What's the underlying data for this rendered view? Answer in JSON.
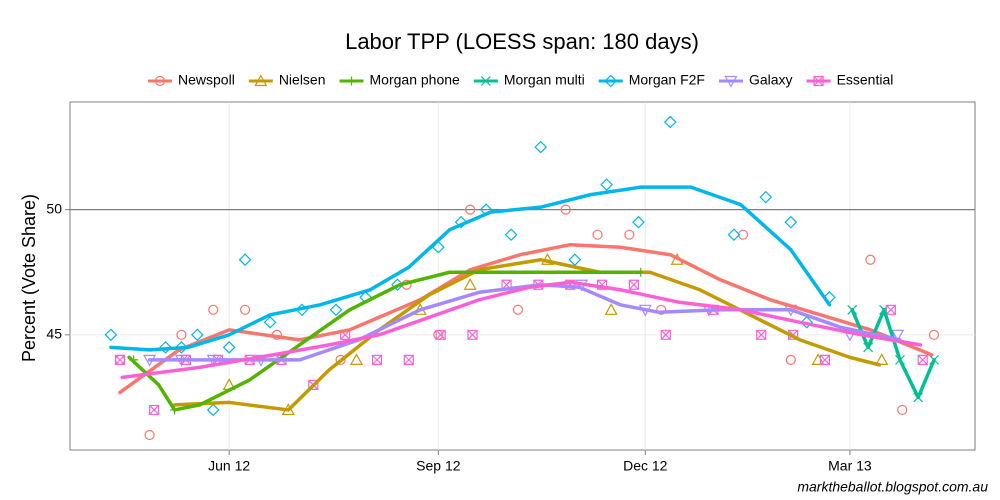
{
  "chart_data": {
    "type": "line",
    "title": "Labor TPP (LOESS span: 180 days)",
    "y_label": "Percent (Vote Share)",
    "caption": "marktheballot.blogspot.com.au",
    "xlim": [
      82,
      480
    ],
    "ylim": [
      40.4,
      54.3
    ],
    "xticks": [
      {
        "value": 152,
        "label": "Jun 12"
      },
      {
        "value": 244,
        "label": "Sep 12"
      },
      {
        "value": 335,
        "label": "Dec 12"
      },
      {
        "value": 425,
        "label": "Mar 13"
      }
    ],
    "yticks": [
      45,
      50
    ],
    "hline": 50,
    "grid": true,
    "legend": "top",
    "series": [
      {
        "name": "Newspoll",
        "color": "#f8766d",
        "marker": "circle",
        "x": [
          104,
          117,
          131,
          145,
          159,
          173,
          201,
          230,
          244,
          258,
          279,
          300,
          314,
          328,
          342,
          378,
          399,
          434,
          448,
          462
        ],
        "values": [
          44,
          41,
          45,
          46,
          46,
          45,
          44,
          47,
          45,
          50,
          46,
          50,
          49,
          49,
          46,
          49,
          44,
          48,
          42,
          45
        ],
        "smooth_x": [
          104,
          130,
          152,
          183,
          205,
          236,
          258,
          280,
          302,
          324,
          346,
          368,
          390,
          412,
          434,
          461
        ],
        "smooth_values": [
          42.7,
          44.4,
          45.2,
          44.8,
          45.2,
          46.4,
          47.6,
          48.2,
          48.6,
          48.5,
          48.2,
          47.2,
          46.4,
          45.8,
          45.2,
          44.2
        ]
      },
      {
        "name": "Nielsen",
        "color": "#c49a00",
        "marker": "triangle",
        "x": [
          152,
          178,
          208,
          236,
          258,
          292,
          320,
          349,
          411,
          439
        ],
        "values": [
          43,
          42,
          44,
          46,
          47,
          48,
          46,
          48,
          44,
          44
        ],
        "smooth_x": [
          128,
          152,
          178,
          196,
          218,
          240,
          262,
          289,
          315,
          337,
          359,
          381,
          403,
          425,
          438
        ],
        "smooth_values": [
          42.2,
          42.3,
          42,
          43.6,
          45.2,
          46.6,
          47.6,
          48,
          47.5,
          47.5,
          46.8,
          45.8,
          44.8,
          44.1,
          43.8
        ]
      },
      {
        "name": "Morgan phone",
        "color": "#53b400",
        "marker": "plus",
        "x": [
          110,
          128,
          333
        ],
        "values": [
          44,
          42,
          47.5
        ],
        "smooth_x": [
          108,
          121,
          128,
          139,
          161,
          183,
          205,
          227,
          249,
          271,
          293,
          315,
          333
        ],
        "smooth_values": [
          44.1,
          43,
          42,
          42.2,
          43.2,
          44.6,
          46,
          47,
          47.5,
          47.5,
          47.5,
          47.5,
          47.5
        ]
      },
      {
        "name": "Morgan multi",
        "color": "#00c094",
        "marker": "cross",
        "x": [
          426,
          433,
          440,
          447,
          455,
          462
        ],
        "values": [
          46,
          44.5,
          46,
          44,
          42.5,
          44
        ],
        "smooth_x": [
          426,
          433,
          440,
          447,
          455,
          462
        ],
        "smooth_values": [
          46,
          44.5,
          46,
          44,
          42.5,
          44
        ]
      },
      {
        "name": "Morgan F2F",
        "color": "#00b6eb",
        "marker": "diamond",
        "x": [
          100,
          124,
          131,
          138,
          145,
          152,
          159,
          170,
          184,
          199,
          212,
          226,
          244,
          254,
          265,
          276,
          289,
          304,
          318,
          332,
          346,
          374,
          388,
          399,
          406,
          416
        ],
        "values": [
          45,
          44.5,
          44.5,
          45,
          42,
          44.5,
          48,
          45.5,
          46,
          46,
          46.5,
          47,
          48.5,
          49.5,
          50,
          49,
          52.5,
          48,
          51,
          49.5,
          53.5,
          49,
          50.5,
          49.5,
          45.5,
          46.5
        ],
        "smooth_x": [
          100,
          117,
          134,
          152,
          170,
          192,
          214,
          231,
          249,
          267,
          289,
          311,
          333,
          355,
          377,
          399,
          416
        ],
        "smooth_values": [
          44.5,
          44.4,
          44.5,
          45,
          45.8,
          46.2,
          46.8,
          47.7,
          49.2,
          49.9,
          50.1,
          50.6,
          50.9,
          50.9,
          50.2,
          48.4,
          46.2
        ]
      },
      {
        "name": "Galaxy",
        "color": "#a58aff",
        "marker": "triangle-down",
        "x": [
          117,
          131,
          145,
          166,
          307,
          335,
          363,
          399,
          425,
          446
        ],
        "values": [
          44,
          44,
          44,
          44,
          47,
          46,
          46,
          46,
          45,
          45
        ],
        "smooth_x": [
          117,
          152,
          183,
          209,
          236,
          262,
          289,
          306,
          324,
          341,
          368,
          399,
          421,
          447
        ],
        "smooth_values": [
          44,
          44,
          44,
          44.8,
          46,
          46.7,
          47,
          46.9,
          46.2,
          45.9,
          46,
          46,
          45.3,
          44.8
        ]
      },
      {
        "name": "Essential",
        "color": "#fb61d7",
        "marker": "square-cross",
        "x": [
          104,
          119,
          133,
          147,
          161,
          175,
          189,
          203,
          217,
          231,
          245,
          259,
          274,
          288,
          302,
          316,
          330,
          344,
          365,
          386,
          400,
          414,
          443,
          457
        ],
        "values": [
          44,
          42,
          44,
          44,
          44,
          44,
          43,
          45,
          44,
          44,
          45,
          45,
          47,
          47,
          47,
          47,
          47,
          45,
          46,
          45,
          45,
          44,
          46,
          44
        ],
        "smooth_x": [
          105,
          139,
          165,
          196,
          218,
          240,
          262,
          284,
          302,
          324,
          350,
          377,
          403,
          430,
          456
        ],
        "smooth_values": [
          43.3,
          43.7,
          44.1,
          44.6,
          45,
          45.7,
          46.4,
          46.9,
          47.1,
          46.8,
          46.3,
          46,
          45.5,
          45,
          44.6
        ]
      }
    ]
  }
}
